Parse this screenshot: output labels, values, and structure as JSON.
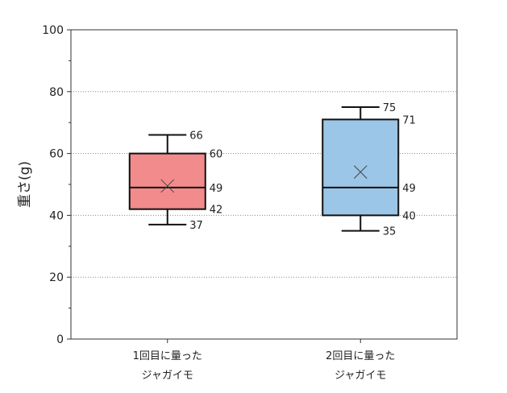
{
  "chart_data": {
    "type": "box",
    "ylabel": "重さ(g)",
    "ylim": [
      0,
      100
    ],
    "yticks": [
      0,
      20,
      40,
      60,
      80,
      100
    ],
    "grid": "horizontal-dotted",
    "categories": [
      {
        "line1": "1回目に量った",
        "line2": "ジャガイモ"
      },
      {
        "line1": "2回目に量った",
        "line2": "ジャガイモ"
      }
    ],
    "boxes": [
      {
        "min": 37,
        "q1": 42,
        "median": 49,
        "q3": 60,
        "max": 66,
        "mean": 49.5,
        "color": "#f28b8b"
      },
      {
        "min": 35,
        "q1": 40,
        "median": 49,
        "q3": 71,
        "max": 75,
        "mean": 54,
        "color": "#9bc6e8"
      }
    ]
  }
}
